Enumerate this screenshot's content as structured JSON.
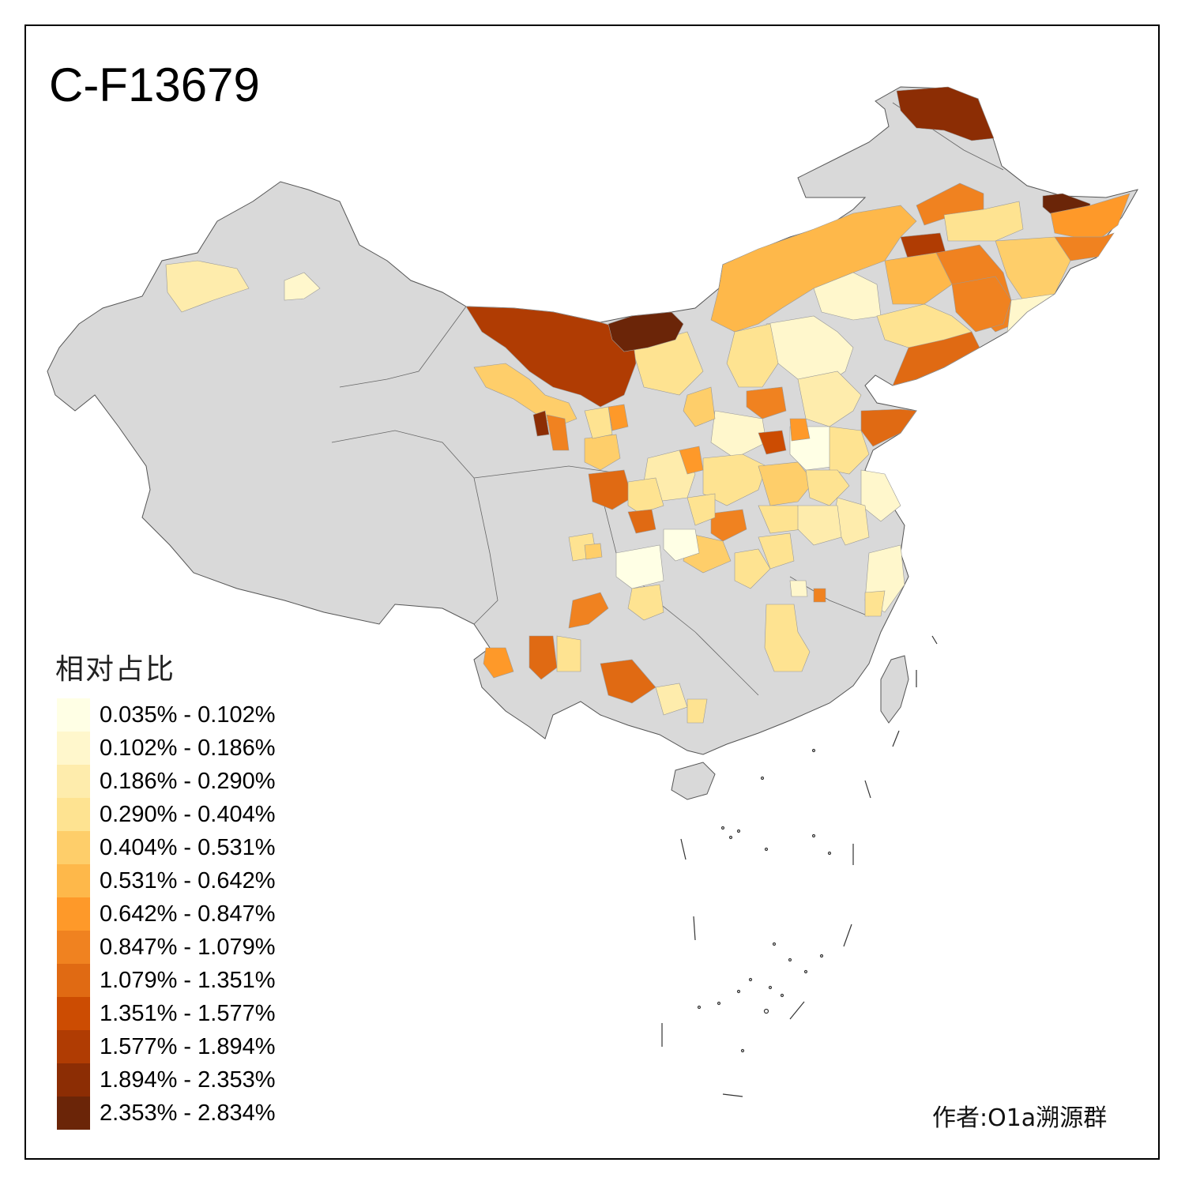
{
  "title": "C-F13679",
  "legend": {
    "title": "相对占比",
    "items": [
      {
        "label": "0.035% - 0.102%",
        "color": "#ffffe5"
      },
      {
        "label": "0.102% - 0.186%",
        "color": "#fff7cc"
      },
      {
        "label": "0.186% - 0.290%",
        "color": "#feecac"
      },
      {
        "label": "0.290% - 0.404%",
        "color": "#fee391"
      },
      {
        "label": "0.404% - 0.531%",
        "color": "#fece6a"
      },
      {
        "label": "0.531% - 0.642%",
        "color": "#feb84a"
      },
      {
        "label": "0.642% - 0.847%",
        "color": "#fe9929"
      },
      {
        "label": "0.847% - 1.079%",
        "color": "#f08220"
      },
      {
        "label": "1.079% - 1.351%",
        "color": "#e06a13"
      },
      {
        "label": "1.351% - 1.577%",
        "color": "#cc4c02"
      },
      {
        "label": "1.577% - 1.894%",
        "color": "#b03c03"
      },
      {
        "label": "1.894% - 2.353%",
        "color": "#8c2d04"
      },
      {
        "label": "2.353% - 2.834%",
        "color": "#6b2508"
      }
    ]
  },
  "no_data_color": "#d9d9d9",
  "author": "作者:O1a溯源群"
}
